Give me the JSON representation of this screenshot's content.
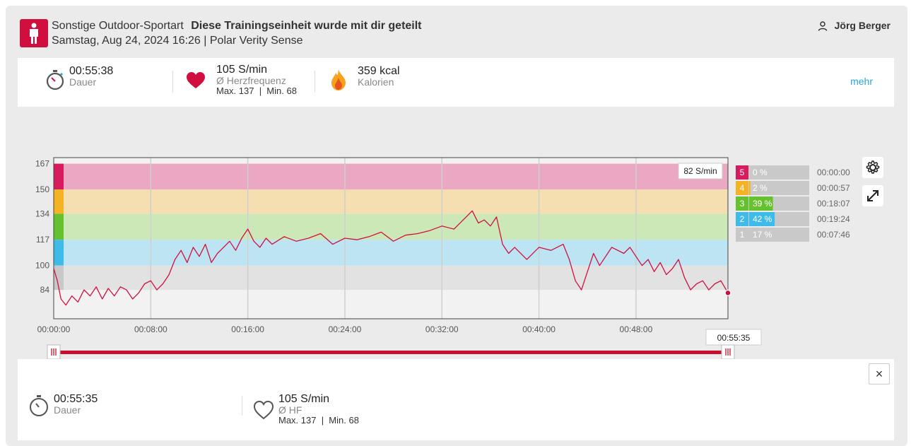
{
  "header": {
    "sport": "Sonstige Outdoor-Sportart",
    "shared_note": "Diese Trainingseinheit wurde mit dir geteilt",
    "datetime_device": "Samstag, Aug 24, 2024 16:26 | Polar Verity Sense",
    "user_name": "Jörg Berger"
  },
  "summary": {
    "duration": {
      "value": "00:55:38",
      "label": "Dauer"
    },
    "heart_rate": {
      "value": "105 S/min",
      "label": "Ø Herzfrequenz",
      "max_min": "Max. 137  |  Min. 68"
    },
    "calories": {
      "value": "359 kcal",
      "label": "Kalorien"
    },
    "more_label": "mehr"
  },
  "chart_data": {
    "type": "line",
    "title": "",
    "xlabel": "",
    "ylabel": "",
    "y_ticks": [
      167,
      150,
      134,
      117,
      100,
      84
    ],
    "x_ticks": [
      "00:00:00",
      "00:08:00",
      "00:16:00",
      "00:24:00",
      "00:32:00",
      "00:40:00",
      "00:48:00"
    ],
    "ylim": [
      65,
      171
    ],
    "x_max_minutes": 55.58,
    "tooltip_value": "82 S/min",
    "cursor_time": "00:55:35",
    "zones": [
      {
        "zone": "5",
        "lower": 150,
        "upper": 167,
        "percent": "0 %",
        "time": "00:00:00",
        "color": "#d81b60",
        "band": "#eaa8c2"
      },
      {
        "zone": "4",
        "lower": 134,
        "upper": 150,
        "percent": "2 %",
        "time": "00:00:57",
        "color": "#f4b323",
        "band": "#f5dfb1"
      },
      {
        "zone": "3",
        "lower": 117,
        "upper": 134,
        "percent": "39 %",
        "time": "00:18:07",
        "color": "#66c12e",
        "band": "#cce8b7"
      },
      {
        "zone": "2",
        "lower": 100,
        "upper": 117,
        "percent": "42 %",
        "time": "00:19:24",
        "color": "#3fbbe9",
        "band": "#bde4f2"
      },
      {
        "zone": "1",
        "lower": 84,
        "upper": 100,
        "percent": "17 %",
        "time": "00:07:46",
        "color": "#c8c8c8",
        "band": "#e2e2e2"
      }
    ],
    "series": [
      {
        "minutes": [
          0,
          0.3,
          0.6,
          1,
          1.5,
          2,
          2.5,
          3,
          3.5,
          4,
          4.5,
          5,
          5.5,
          6,
          6.5,
          7,
          7.5,
          8,
          8.5,
          9,
          9.5,
          10,
          10.5,
          11,
          11.5,
          12,
          12.5,
          13,
          13.5,
          14,
          14.5,
          15,
          15.5,
          16,
          16.5,
          17,
          17.5,
          18,
          19,
          20,
          21,
          22,
          23,
          24,
          25,
          26,
          27,
          28,
          29,
          30,
          31,
          32,
          33,
          34,
          34.5,
          35,
          35.5,
          36,
          36.5,
          37,
          37.5,
          38,
          39,
          40,
          41,
          42,
          42.5,
          43,
          43.5,
          44,
          44.5,
          45,
          46,
          47,
          47.5,
          48,
          48.5,
          49,
          49.5,
          50,
          50.5,
          51,
          51.5,
          52,
          52.5,
          53,
          53.5,
          54,
          54.5,
          55,
          55.58
        ],
        "values": [
          98,
          90,
          78,
          74,
          80,
          76,
          84,
          80,
          86,
          78,
          85,
          80,
          86,
          84,
          78,
          82,
          88,
          90,
          84,
          88,
          94,
          104,
          110,
          102,
          112,
          106,
          114,
          102,
          108,
          112,
          116,
          110,
          118,
          124,
          116,
          112,
          118,
          114,
          119,
          116,
          118,
          121,
          114,
          118,
          117,
          119,
          122,
          116,
          120,
          121,
          123,
          126,
          124,
          132,
          136,
          128,
          130,
          126,
          132,
          114,
          108,
          112,
          104,
          112,
          110,
          114,
          104,
          90,
          84,
          96,
          108,
          100,
          112,
          108,
          112,
          106,
          100,
          104,
          96,
          102,
          94,
          98,
          104,
          92,
          84,
          88,
          90,
          84,
          88,
          90,
          82
        ]
      }
    ]
  },
  "selection": {
    "duration": {
      "value": "00:55:35",
      "label": "Dauer"
    },
    "heart_rate": {
      "value": "105 S/min",
      "label": "Ø HF",
      "max_min": "Max. 137  |  Min. 68"
    },
    "close_label": "×"
  },
  "icons": {
    "sport": "person-icon",
    "user": "user-icon",
    "duration": "stopwatch-icon",
    "heart": "heart-icon",
    "calories": "flame-icon",
    "settings": "gear-icon",
    "expand": "expand-icon"
  }
}
